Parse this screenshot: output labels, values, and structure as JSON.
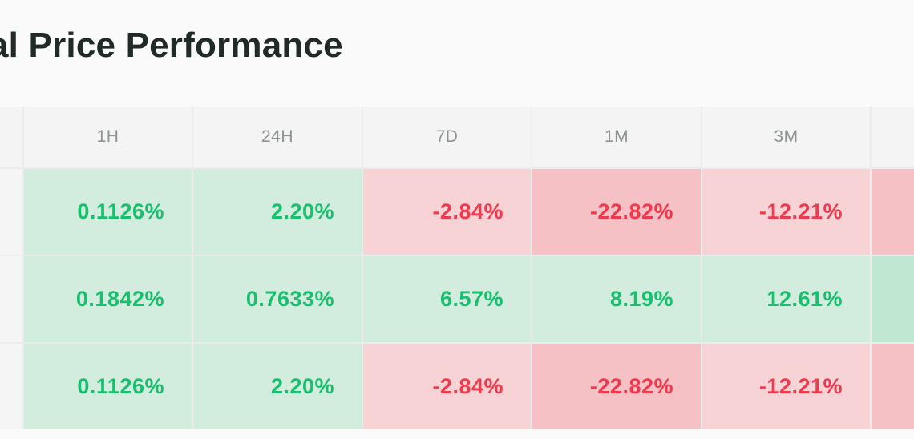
{
  "title": "al Price Performance",
  "columns": [
    "",
    "1H",
    "24H",
    "7D",
    "1M",
    "3M",
    ""
  ],
  "rows": [
    {
      "cells": [
        {
          "text": "",
          "tone": "label"
        },
        {
          "text": "0.1126%",
          "tone": "pos-light"
        },
        {
          "text": "2.20%",
          "tone": "pos-light"
        },
        {
          "text": "-2.84%",
          "tone": "neg-light"
        },
        {
          "text": "-22.82%",
          "tone": "neg-mid"
        },
        {
          "text": "-12.21%",
          "tone": "neg-light"
        },
        {
          "text": "-",
          "tone": "neg-mid"
        }
      ]
    },
    {
      "cells": [
        {
          "text": "",
          "tone": "label"
        },
        {
          "text": "0.1842%",
          "tone": "pos-light"
        },
        {
          "text": "0.7633%",
          "tone": "pos-light"
        },
        {
          "text": "6.57%",
          "tone": "pos-light"
        },
        {
          "text": "8.19%",
          "tone": "pos-light"
        },
        {
          "text": "12.61%",
          "tone": "pos-light"
        },
        {
          "text": "",
          "tone": "pos-mid"
        }
      ]
    },
    {
      "cells": [
        {
          "text": "",
          "tone": "label"
        },
        {
          "text": "0.1126%",
          "tone": "pos-light"
        },
        {
          "text": "2.20%",
          "tone": "pos-light"
        },
        {
          "text": "-2.84%",
          "tone": "neg-light"
        },
        {
          "text": "-22.82%",
          "tone": "neg-mid"
        },
        {
          "text": "-12.21%",
          "tone": "neg-light"
        },
        {
          "text": "-",
          "tone": "neg-mid"
        }
      ]
    }
  ],
  "colors": {
    "positive_text": "#17c06e",
    "negative_text": "#f2384c",
    "positive_bg": "#d2ecde",
    "negative_bg": "#f8d3d5"
  }
}
